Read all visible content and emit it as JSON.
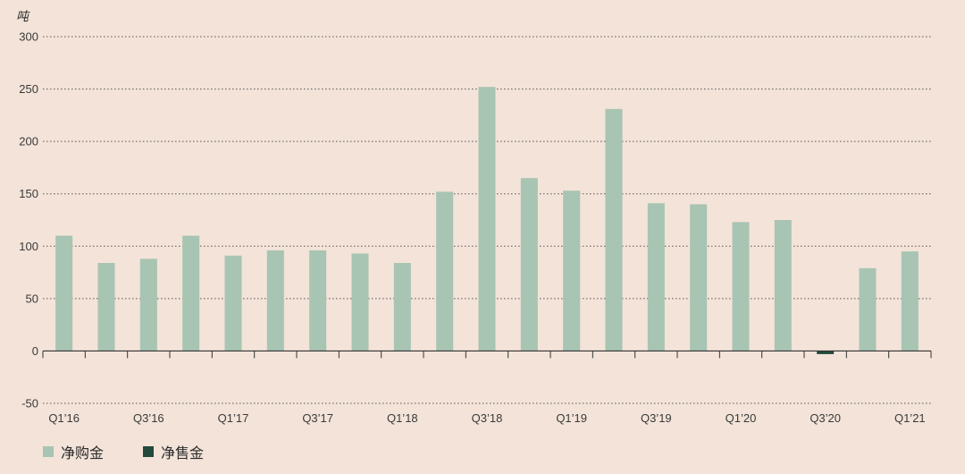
{
  "chart_data": {
    "type": "bar",
    "unit_label": "吨",
    "ylim": [
      -50,
      300
    ],
    "yticks": [
      300,
      250,
      200,
      150,
      100,
      50,
      0,
      -50
    ],
    "xtick_labels": [
      "Q1’16",
      "Q3’16",
      "Q1’17",
      "Q3’17",
      "Q1’18",
      "Q3’18",
      "Q1’19",
      "Q3’19",
      "Q1’20",
      "Q3’20",
      "Q1’21"
    ],
    "categories": [
      "Q1’16",
      "Q2’16",
      "Q3’16",
      "Q4’16",
      "Q1’17",
      "Q2’17",
      "Q3’17",
      "Q4’17",
      "Q1’18",
      "Q2’18",
      "Q3’18",
      "Q4’18",
      "Q1’19",
      "Q2’19",
      "Q3’19",
      "Q4’19",
      "Q1’20",
      "Q2’20",
      "Q3’20",
      "Q4’20",
      "Q1’21"
    ],
    "series": [
      {
        "name": "净购金",
        "color": "#a8c4b3",
        "values": [
          110,
          84,
          88,
          110,
          91,
          96,
          96,
          93,
          84,
          152,
          252,
          165,
          153,
          231,
          141,
          140,
          123,
          125,
          null,
          79,
          95
        ]
      },
      {
        "name": "净售金",
        "color": "#234a3c",
        "values": [
          null,
          null,
          null,
          null,
          null,
          null,
          null,
          null,
          null,
          null,
          null,
          null,
          null,
          null,
          null,
          null,
          null,
          null,
          -3,
          null,
          null
        ]
      }
    ],
    "grid": true,
    "legend_position": "bottom-left"
  }
}
